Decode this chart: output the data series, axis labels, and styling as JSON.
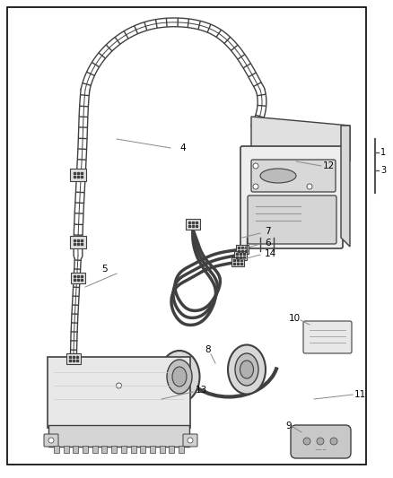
{
  "bg_color": "#ffffff",
  "border_color": "#000000",
  "line_color": "#404040",
  "gray1": "#cccccc",
  "gray2": "#aaaaaa",
  "gray3": "#888888",
  "figsize": [
    4.38,
    5.33
  ],
  "dpi": 100
}
